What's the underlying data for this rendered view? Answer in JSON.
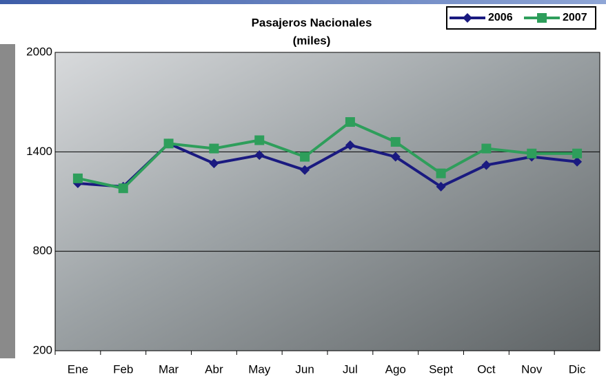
{
  "chart_data": {
    "type": "line",
    "title": "Pasajeros Nacionales",
    "subtitle": "(miles)",
    "categories": [
      "Ene",
      "Feb",
      "Mar",
      "Abr",
      "May",
      "Jun",
      "Jul",
      "Ago",
      "Sept",
      "Oct",
      "Nov",
      "Dic"
    ],
    "series": [
      {
        "name": "2006",
        "color": "#1a1a80",
        "marker": "diamond",
        "values": [
          1210,
          1190,
          1450,
          1330,
          1380,
          1290,
          1440,
          1370,
          1190,
          1320,
          1370,
          1340
        ]
      },
      {
        "name": "2007",
        "color": "#2e9e5b",
        "marker": "square",
        "values": [
          1240,
          1180,
          1450,
          1420,
          1470,
          1370,
          1580,
          1460,
          1270,
          1420,
          1390,
          1390
        ]
      }
    ],
    "ylim": [
      200,
      2000
    ],
    "yticks": [
      200,
      800,
      1400,
      2000
    ],
    "grid": true,
    "legend": "top-right"
  }
}
